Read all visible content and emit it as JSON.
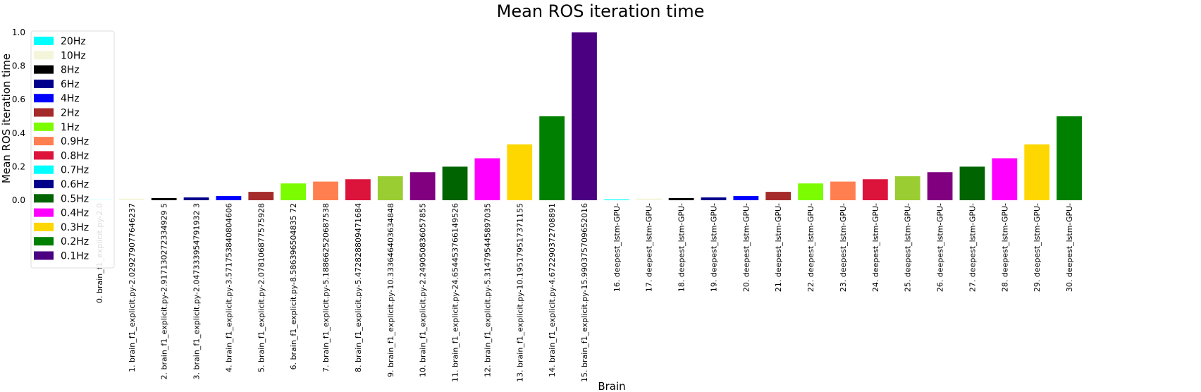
{
  "chart_data": {
    "type": "bar",
    "title": "Mean ROS iteration time",
    "xlabel": "Brain",
    "ylabel": "Mean ROS iteration time",
    "ylim": [
      0,
      1.05
    ],
    "yticks": [
      "0.0",
      "0.2",
      "0.4",
      "0.6",
      "0.8",
      "1.0"
    ],
    "grid": false,
    "legend_position": "upper-left",
    "categories": [
      "0. brain_f1_explicit.py-2.0",
      "1. brain_f1_explicit.py-2.029279077646237",
      "2. brain_f1_explicit.py-2.917130272334929 5",
      "3. brain_f1_explicit.py-2.047333954791932 3",
      "4. brain_f1_explicit.py-3.571753840804606",
      "5. brain_f1_explicit.py-2.078106877575928",
      "6. brain_f1_explicit.py-8.586396504835 72",
      "7. brain_f1_explicit.py-5.188662520687538",
      "8. brain_f1_explicit.py-5.472828809471684",
      "9. brain_f1_explicit.py-10.333646403634848",
      "10. brain_f1_explicit.py-2.249050836057855",
      "11. brain_f1_explicit.py-24.654453766149526",
      "12. brain_f1_explicit.py-5.314795445897035",
      "13. brain_f1_explicit.py-10.195179517371155",
      "14. brain_f1_explicit.py-4.672290372708891",
      "15. brain_f1_explicit.py-15.990375709652016",
      "16. deepest_lstm-GPU-",
      "17. deepest_lstm-GPU-",
      "18. deepest_lstm-GPU-",
      "19. deepest_lstm-GPU-",
      "20. deepest_lstm-GPU-",
      "21. deepest_lstm-GPU-",
      "22. deepest_lstm-GPU-",
      "23. deepest_lstm-GPU-",
      "24. deepest_lstm-GPU-",
      "25. deepest_lstm-GPU-",
      "26. deepest_lstm-GPU-",
      "27. deepest_lstm-GPU-",
      "28. deepest_lstm-GPU-",
      "29. deepest_lstm-GPU-",
      "30. deepest_lstm-GPU-"
    ],
    "values": [
      0.005,
      0.01,
      0.0125,
      0.0167,
      0.025,
      0.05,
      0.1,
      0.111,
      0.125,
      0.143,
      0.167,
      0.2,
      0.25,
      0.333,
      0.5,
      1.0,
      0.005,
      0.01,
      0.0125,
      0.0167,
      0.025,
      0.05,
      0.1,
      0.111,
      0.125,
      0.143,
      0.167,
      0.2,
      0.25,
      0.333,
      0.5
    ],
    "bar_colors": [
      "#00ffff",
      "#f5f5dc",
      "#000000",
      "#00008b",
      "#0000ff",
      "#a52a2a",
      "#7cfc00",
      "#ff7f50",
      "#dc143c",
      "#9acd32",
      "#800080",
      "#006400",
      "#ff00ff",
      "#ffd700",
      "#008000",
      "#4b0082",
      "#00ffff",
      "#f5f5dc",
      "#000000",
      "#00008b",
      "#0000ff",
      "#a52a2a",
      "#7cfc00",
      "#ff7f50",
      "#dc143c",
      "#9acd32",
      "#800080",
      "#006400",
      "#ff00ff",
      "#ffd700",
      "#008000"
    ],
    "legend": [
      {
        "label": "20Hz",
        "color": "#00ffff"
      },
      {
        "label": "10Hz",
        "color": "#f5f5dc"
      },
      {
        "label": "8Hz",
        "color": "#000000"
      },
      {
        "label": "6Hz",
        "color": "#00008b"
      },
      {
        "label": "4Hz",
        "color": "#0000ff"
      },
      {
        "label": "2Hz",
        "color": "#a52a2a"
      },
      {
        "label": "1Hz",
        "color": "#7cfc00"
      },
      {
        "label": "0.9Hz",
        "color": "#ff7f50"
      },
      {
        "label": "0.8Hz",
        "color": "#dc143c"
      },
      {
        "label": "0.7Hz",
        "color": "#00ffff"
      },
      {
        "label": "0.6Hz",
        "color": "#00008b"
      },
      {
        "label": "0.5Hz",
        "color": "#006400"
      },
      {
        "label": "0.4Hz",
        "color": "#ff00ff"
      },
      {
        "label": "0.3Hz",
        "color": "#ffd700"
      },
      {
        "label": "0.2Hz",
        "color": "#008000"
      },
      {
        "label": "0.1Hz",
        "color": "#4b0082"
      }
    ]
  }
}
